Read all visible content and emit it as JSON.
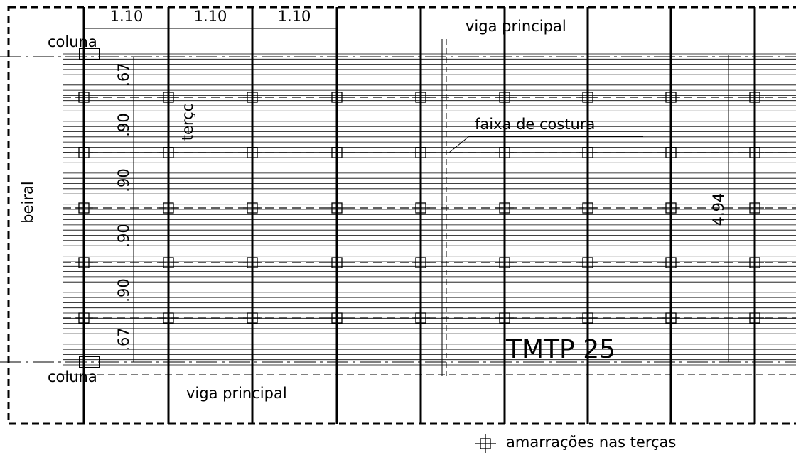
{
  "dimensions_top": [
    "1.10",
    "1.10",
    "1.10"
  ],
  "dimensions_left": [
    ".67",
    ".90",
    ".90",
    ".90",
    ".90",
    ".67"
  ],
  "dimension_height": "4.94",
  "labels": {
    "column_top": "coluna",
    "column_bottom": "coluna",
    "beam_top": "viga principal",
    "beam_bottom": "viga principal",
    "purlin": "terçc",
    "seam": "faixa de costura",
    "eave": "beiral",
    "sheet": "TMTP 25"
  },
  "legend": "amarrações nas terças"
}
